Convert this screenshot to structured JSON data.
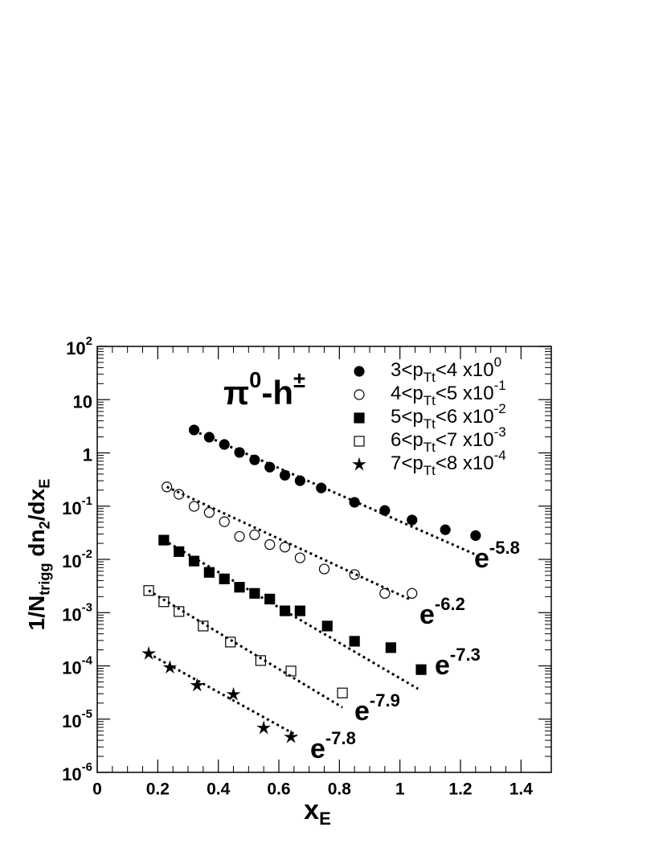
{
  "chart_data": {
    "type": "scatter",
    "log_y": true,
    "title": [
      {
        "t": "π"
      },
      {
        "sup": "0"
      },
      {
        "t": "-h"
      },
      {
        "sup": "±"
      }
    ],
    "x_label": [
      {
        "t": "x"
      },
      {
        "sub": "E"
      }
    ],
    "y_label": [
      {
        "t": "1/N"
      },
      {
        "sub": "trigg"
      },
      {
        "t": " dn"
      },
      {
        "sub": "2"
      },
      {
        "t": "/dx"
      },
      {
        "sub": "E"
      }
    ],
    "xlim": [
      0,
      1.5
    ],
    "xticks": [
      0,
      0.2,
      0.4,
      0.6,
      0.8,
      1,
      1.2,
      1.4
    ],
    "ylim": [
      1e-06,
      100
    ],
    "yticks": [
      {
        "value": 100,
        "label": "10",
        "exp": "2"
      },
      10,
      1,
      {
        "value": 0.1,
        "label": "10",
        "exp": "-1"
      },
      {
        "value": 0.01,
        "label": "10",
        "exp": "-2"
      },
      {
        "value": 0.001,
        "label": "10",
        "exp": "-3"
      },
      {
        "value": 0.0001,
        "label": "10",
        "exp": "-4"
      },
      {
        "value": 1e-05,
        "label": "10",
        "exp": "-5"
      },
      {
        "value": 1e-06,
        "label": "10",
        "exp": "-6"
      }
    ],
    "series": [
      {
        "legend": [
          {
            "t": "3<p"
          },
          {
            "sub": "Tt"
          },
          {
            "t": "<4 x10"
          },
          {
            "sup": "0"
          }
        ],
        "marker": "circle",
        "filled": true,
        "color": "#000000",
        "x": [
          0.32,
          0.37,
          0.42,
          0.47,
          0.52,
          0.57,
          0.62,
          0.67,
          0.74,
          0.85,
          0.95,
          1.04,
          1.15,
          1.25
        ],
        "values": [
          2.7,
          1.97,
          1.44,
          1.02,
          0.74,
          0.54,
          0.38,
          0.3,
          0.22,
          0.118,
          0.083,
          0.055,
          0.036,
          0.028
        ]
      },
      {
        "legend": [
          {
            "t": "4<p"
          },
          {
            "sub": "Tt"
          },
          {
            "t": "<5 x10"
          },
          {
            "sup": "-1"
          }
        ],
        "marker": "circle",
        "filled": false,
        "color": "#000000",
        "x": [
          0.23,
          0.27,
          0.32,
          0.37,
          0.42,
          0.47,
          0.52,
          0.57,
          0.62,
          0.67,
          0.75,
          0.85,
          0.95,
          1.04
        ],
        "values": [
          0.23,
          0.167,
          0.099,
          0.076,
          0.051,
          0.027,
          0.029,
          0.019,
          0.017,
          0.0107,
          0.0066,
          0.0052,
          0.0023,
          0.0023
        ]
      },
      {
        "legend": [
          {
            "t": "5<p"
          },
          {
            "sub": "Tt"
          },
          {
            "t": "<6 x10"
          },
          {
            "sup": "-2"
          }
        ],
        "marker": "square",
        "filled": true,
        "color": "#000000",
        "x": [
          0.22,
          0.27,
          0.32,
          0.37,
          0.42,
          0.47,
          0.52,
          0.57,
          0.62,
          0.67,
          0.76,
          0.85,
          0.97,
          1.07
        ],
        "values": [
          0.023,
          0.014,
          0.0093,
          0.0057,
          0.0043,
          0.003,
          0.0023,
          0.0018,
          0.00108,
          0.00108,
          0.00056,
          0.00029,
          0.00022,
          8.5e-05
        ]
      },
      {
        "legend": [
          {
            "t": "6<p"
          },
          {
            "sub": "Tt"
          },
          {
            "t": "<7 x10"
          },
          {
            "sup": "-3"
          }
        ],
        "marker": "square",
        "filled": false,
        "color": "#000000",
        "x": [
          0.17,
          0.22,
          0.27,
          0.35,
          0.44,
          0.54,
          0.64,
          0.81
        ],
        "values": [
          0.0026,
          0.0016,
          0.00105,
          0.00056,
          0.00028,
          0.000126,
          8e-05,
          3.1e-05
        ]
      },
      {
        "legend": [
          {
            "t": "7<p"
          },
          {
            "sub": "Tt"
          },
          {
            "t": "<8 x10"
          },
          {
            "sup": "-4"
          }
        ],
        "marker": "star",
        "filled": true,
        "color": "#000000",
        "x": [
          0.17,
          0.24,
          0.33,
          0.45,
          0.55,
          0.64
        ],
        "values": [
          0.00017,
          9.3e-05,
          4.3e-05,
          2.9e-05,
          6.8e-06,
          4.6e-06
        ]
      }
    ],
    "fits": [
      {
        "base": "e",
        "exp": "-5.8",
        "x": [
          0.32,
          1.25
        ],
        "y": [
          2.6,
          0.0123
        ]
      },
      {
        "base": "e",
        "exp": "-6.2",
        "x": [
          0.23,
          1.03
        ],
        "y": [
          0.23,
          0.0018
        ]
      },
      {
        "base": "e",
        "exp": "-7.3",
        "x": [
          0.22,
          1.06
        ],
        "y": [
          0.023,
          3.7e-05
        ]
      },
      {
        "base": "e",
        "exp": "-7.9",
        "x": [
          0.17,
          0.81
        ],
        "y": [
          0.0026,
          1.66e-05
        ]
      },
      {
        "base": "e",
        "exp": "-7.8",
        "x": [
          0.17,
          0.66
        ],
        "y": [
          0.00017,
          4.9e-06
        ]
      }
    ]
  }
}
